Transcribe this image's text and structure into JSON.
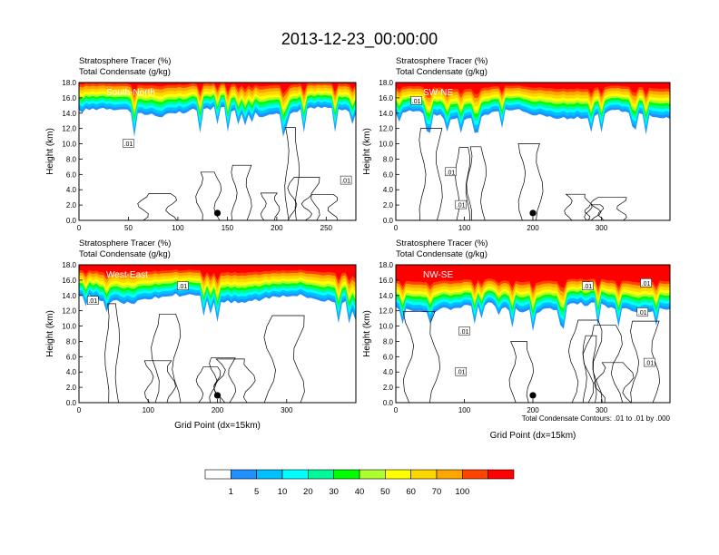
{
  "figure": {
    "title": "2013-12-23_00:00:00",
    "contour_note": "Total Condensate Contours: .01 to .01 by .000",
    "colorbar": {
      "levels": [
        "1",
        "5",
        "10",
        "20",
        "30",
        "40",
        "50",
        "60",
        "70",
        "100"
      ],
      "colors": [
        "#ffffff",
        "#1e90ff",
        "#00bfff",
        "#00ffff",
        "#00fa9a",
        "#00ff00",
        "#adff2f",
        "#ffff00",
        "#ffd700",
        "#ffa500",
        "#ff4500",
        "#ff0000"
      ]
    }
  },
  "chart_data": [
    {
      "type": "heatmap",
      "panel_label": "South-North",
      "subtitle_line1": "Stratosphere Tracer   (%)",
      "subtitle_line2": "Total Condensate   (g/kg)",
      "ylabel": "Height (km)",
      "xlabel": "",
      "xlim": [
        0,
        280
      ],
      "ylim": [
        0,
        18
      ],
      "xticks": [
        0,
        50,
        100,
        150,
        200,
        250
      ],
      "yticks": [
        "0.0",
        "2.0",
        "4.0",
        "6.0",
        "8.0",
        "10.0",
        "12.0",
        "14.0",
        "16.0",
        "18.0"
      ],
      "base_km": 14.2,
      "marker_x": 140,
      "contour_labels": [
        {
          "x": 50,
          "y": 10,
          "text": ".01"
        },
        {
          "x": 270,
          "y": 5.2,
          "text": ".01"
        }
      ]
    },
    {
      "type": "heatmap",
      "panel_label": "SW-NE",
      "subtitle_line1": "Stratosphere Tracer   (%)",
      "subtitle_line2": "Total Condensate   (g/kg)",
      "ylabel": "Height (km)",
      "xlabel": "",
      "xlim": [
        0,
        400
      ],
      "ylim": [
        0,
        18
      ],
      "xticks": [
        0,
        100,
        200,
        300
      ],
      "yticks": [
        "0.0",
        "2.0",
        "4.0",
        "6.0",
        "8.0",
        "10.0",
        "12.0",
        "14.0",
        "16.0",
        "18.0"
      ],
      "base_km": 13.8,
      "marker_x": 200,
      "contour_labels": [
        {
          "x": 30,
          "y": 15.6,
          "text": ".01"
        },
        {
          "x": 80,
          "y": 6.3,
          "text": ".01"
        },
        {
          "x": 95,
          "y": 2,
          "text": ".01"
        }
      ]
    },
    {
      "type": "heatmap",
      "panel_label": "West-East",
      "subtitle_line1": "Stratosphere Tracer   (%)",
      "subtitle_line2": "Total Condensate   (g/kg)",
      "ylabel": "Height (km)",
      "xlabel": "Grid Point (dx=15km)",
      "xlim": [
        0,
        400
      ],
      "ylim": [
        0,
        18
      ],
      "xticks": [
        0,
        100,
        200,
        300
      ],
      "yticks": [
        "0.0",
        "2.0",
        "4.0",
        "6.0",
        "8.0",
        "10.0",
        "12.0",
        "14.0",
        "16.0",
        "18.0"
      ],
      "base_km": 13.6,
      "marker_x": 200,
      "contour_labels": [
        {
          "x": 20,
          "y": 13.3,
          "text": ".01"
        },
        {
          "x": 150,
          "y": 15.2,
          "text": ".01"
        }
      ]
    },
    {
      "type": "heatmap",
      "panel_label": "NW-SE",
      "subtitle_line1": "Stratosphere Tracer   (%)",
      "subtitle_line2": "Total Condensate   (g/kg)",
      "ylabel": "Height (km)",
      "xlabel": "Grid Point (dx=15km)",
      "xlim": [
        0,
        400
      ],
      "ylim": [
        0,
        18
      ],
      "xticks": [
        0,
        100,
        200,
        300
      ],
      "yticks": [
        "0.0",
        "2.0",
        "4.0",
        "6.0",
        "8.0",
        "10.0",
        "12.0",
        "14.0",
        "16.0",
        "18.0"
      ],
      "base_km": 12.4,
      "marker_x": 200,
      "contour_labels": [
        {
          "x": 100,
          "y": 9.3,
          "text": ".01"
        },
        {
          "x": 95,
          "y": 4,
          "text": ".01"
        },
        {
          "x": 360,
          "y": 11.8,
          "text": ".01"
        },
        {
          "x": 370,
          "y": 5.2,
          "text": ".01"
        },
        {
          "x": 280,
          "y": 15.2,
          "text": ".01"
        },
        {
          "x": 365,
          "y": 15.6,
          "text": ".01"
        }
      ]
    }
  ]
}
